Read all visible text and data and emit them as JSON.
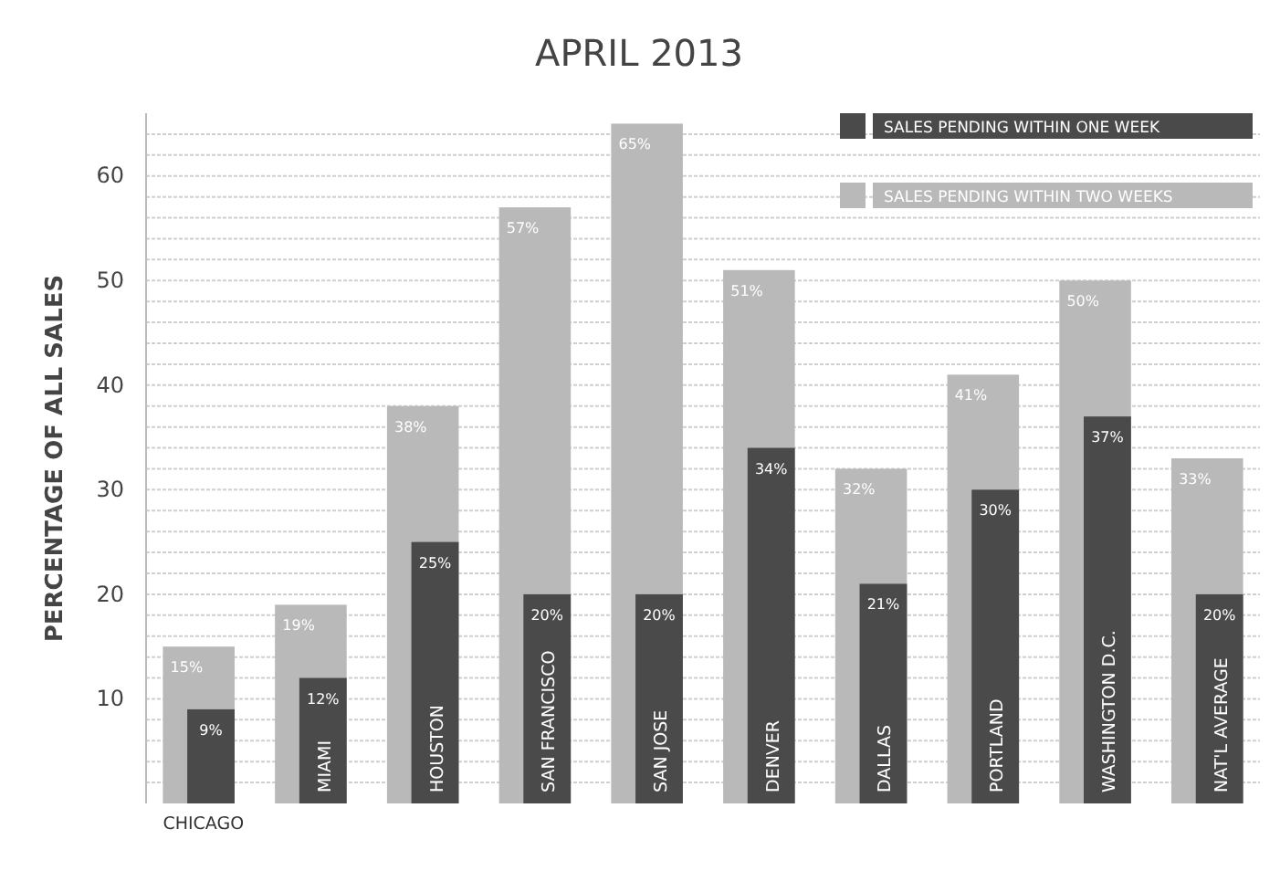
{
  "chart_data": {
    "type": "bar",
    "title": "APRIL 2013",
    "ylabel": "PERCENTAGE OF ALL SALES",
    "categories": [
      "CHICAGO",
      "MIAMI",
      "HOUSTON",
      "SAN FRANCISCO",
      "SAN JOSE",
      "DENVER",
      "DALLAS",
      "PORTLAND",
      "WASHINGTON D.C.",
      "NAT'L AVERAGE"
    ],
    "series": [
      {
        "name": "SALES PENDING WITHIN ONE WEEK",
        "color": "#4a4a4a",
        "values": [
          9,
          12,
          25,
          20,
          20,
          34,
          21,
          30,
          37,
          20
        ],
        "value_labels": [
          "9%",
          "12%",
          "25%",
          "20%",
          "20%",
          "34%",
          "21%",
          "30%",
          "37%",
          "20%"
        ]
      },
      {
        "name": "SALES PENDING WITHIN TWO WEEKS",
        "color": "#b9b9b9",
        "values": [
          15,
          19,
          38,
          57,
          65,
          51,
          32,
          41,
          50,
          33
        ],
        "value_labels": [
          "15%",
          "19%",
          "38%",
          "57%",
          "65%",
          "51%",
          "32%",
          "41%",
          "50%",
          "33%"
        ]
      }
    ],
    "ylim": [
      0,
      66
    ],
    "yticks": [
      {
        "value": 2,
        "label": null
      },
      {
        "value": 4,
        "label": null
      },
      {
        "value": 6,
        "label": null
      },
      {
        "value": 8,
        "label": null
      },
      10,
      {
        "value": 12,
        "label": null
      },
      {
        "value": 14,
        "label": null
      },
      {
        "value": 16,
        "label": null
      },
      {
        "value": 18,
        "label": null
      },
      20,
      {
        "value": 22,
        "label": null
      },
      {
        "value": 24,
        "label": null
      },
      {
        "value": 26,
        "label": null
      },
      {
        "value": 28,
        "label": null
      },
      30,
      {
        "value": 32,
        "label": null
      },
      {
        "value": 34,
        "label": null
      },
      {
        "value": 36,
        "label": null
      },
      {
        "value": 38,
        "label": null
      },
      40,
      {
        "value": 42,
        "label": null
      },
      {
        "value": 44,
        "label": null
      },
      {
        "value": 46,
        "label": null
      },
      {
        "value": 48,
        "label": null
      },
      50,
      {
        "value": 52,
        "label": null
      },
      {
        "value": 54,
        "label": null
      },
      {
        "value": 56,
        "label": null
      },
      {
        "value": 58,
        "label": null
      },
      60,
      {
        "value": 62,
        "label": null
      },
      {
        "value": 64,
        "label": null
      }
    ],
    "grid": "y",
    "legend": "top right"
  }
}
